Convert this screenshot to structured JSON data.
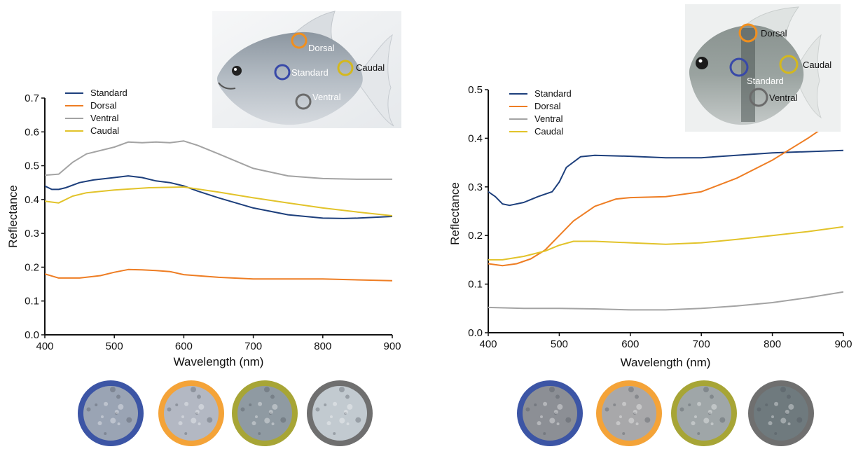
{
  "colors": {
    "Standard": "#1d3f7c",
    "Dorsal": "#ee7d23",
    "Ventral": "#a3a3a3",
    "Caudal": "#e2c32a",
    "swatch_rings": [
      "#3c55a5",
      "#f4a338",
      "#a7a536",
      "#6f6f6f"
    ]
  },
  "fish_images": [
    {
      "labels": {
        "dorsal": "Dorsal",
        "standard": "Standard",
        "caudal": "Caudal",
        "ventral": "Ventral"
      }
    },
    {
      "labels": {
        "dorsal": "Dorsal",
        "standard": "Standard",
        "caudal": "Caudal",
        "ventral": "Ventral"
      }
    }
  ],
  "chart_data": [
    {
      "type": "line",
      "xlabel": "Wavelength (nm)",
      "ylabel": "Reflectance",
      "xlim": [
        400,
        900
      ],
      "ylim": [
        0.0,
        0.7
      ],
      "xticks": [
        "400",
        "500",
        "600",
        "700",
        "800",
        "900"
      ],
      "yticks": [
        "0.0",
        "0.1",
        "0.2",
        "0.3",
        "0.4",
        "0.5",
        "0.6",
        "0.7"
      ],
      "legend_position": "top-left",
      "grid": false,
      "series": [
        {
          "name": "Standard",
          "x": [
            400,
            410,
            420,
            430,
            450,
            470,
            500,
            520,
            540,
            560,
            580,
            600,
            620,
            650,
            700,
            750,
            800,
            830,
            850,
            900
          ],
          "y": [
            0.44,
            0.43,
            0.43,
            0.435,
            0.45,
            0.458,
            0.465,
            0.47,
            0.465,
            0.455,
            0.45,
            0.44,
            0.425,
            0.405,
            0.375,
            0.355,
            0.345,
            0.344,
            0.345,
            0.35
          ]
        },
        {
          "name": "Dorsal",
          "x": [
            400,
            420,
            450,
            480,
            500,
            520,
            540,
            560,
            580,
            600,
            650,
            700,
            800,
            900
          ],
          "y": [
            0.18,
            0.168,
            0.168,
            0.175,
            0.185,
            0.193,
            0.192,
            0.19,
            0.187,
            0.178,
            0.17,
            0.165,
            0.165,
            0.16
          ]
        },
        {
          "name": "Ventral",
          "x": [
            400,
            420,
            440,
            460,
            500,
            520,
            540,
            560,
            580,
            600,
            620,
            650,
            700,
            750,
            800,
            850,
            900
          ],
          "y": [
            0.472,
            0.475,
            0.51,
            0.535,
            0.555,
            0.57,
            0.568,
            0.57,
            0.568,
            0.573,
            0.56,
            0.535,
            0.492,
            0.47,
            0.462,
            0.46,
            0.46
          ]
        },
        {
          "name": "Caudal",
          "x": [
            400,
            420,
            440,
            460,
            500,
            550,
            600,
            650,
            700,
            750,
            800,
            850,
            900
          ],
          "y": [
            0.395,
            0.39,
            0.41,
            0.42,
            0.428,
            0.435,
            0.437,
            0.422,
            0.405,
            0.39,
            0.375,
            0.363,
            0.352
          ]
        }
      ]
    },
    {
      "type": "line",
      "xlabel": "Wavelength (nm)",
      "ylabel": "Reflectance",
      "xlim": [
        400,
        900
      ],
      "ylim": [
        0.0,
        0.5
      ],
      "xticks": [
        "400",
        "500",
        "600",
        "700",
        "800",
        "900"
      ],
      "yticks": [
        "0.0",
        "0.1",
        "0.2",
        "0.3",
        "0.4",
        "0.5"
      ],
      "legend_position": "top-left",
      "grid": false,
      "series": [
        {
          "name": "Standard",
          "x": [
            400,
            410,
            420,
            430,
            450,
            470,
            490,
            500,
            510,
            530,
            550,
            600,
            650,
            700,
            800,
            900
          ],
          "y": [
            0.29,
            0.28,
            0.265,
            0.262,
            0.268,
            0.28,
            0.29,
            0.31,
            0.34,
            0.362,
            0.365,
            0.363,
            0.36,
            0.36,
            0.37,
            0.375
          ]
        },
        {
          "name": "Dorsal",
          "x": [
            400,
            420,
            440,
            460,
            480,
            500,
            520,
            550,
            580,
            600,
            650,
            700,
            750,
            800,
            850,
            880
          ],
          "y": [
            0.142,
            0.138,
            0.142,
            0.152,
            0.17,
            0.2,
            0.23,
            0.26,
            0.275,
            0.278,
            0.28,
            0.29,
            0.318,
            0.355,
            0.4,
            0.43
          ]
        },
        {
          "name": "Ventral",
          "x": [
            400,
            450,
            500,
            550,
            600,
            650,
            700,
            750,
            800,
            850,
            900
          ],
          "y": [
            0.052,
            0.05,
            0.05,
            0.049,
            0.047,
            0.047,
            0.05,
            0.055,
            0.062,
            0.072,
            0.084
          ]
        },
        {
          "name": "Caudal",
          "x": [
            400,
            420,
            450,
            480,
            500,
            520,
            550,
            600,
            650,
            700,
            750,
            800,
            850,
            900
          ],
          "y": [
            0.15,
            0.15,
            0.157,
            0.168,
            0.18,
            0.188,
            0.188,
            0.185,
            0.182,
            0.185,
            0.192,
            0.2,
            0.208,
            0.218
          ]
        }
      ]
    }
  ]
}
